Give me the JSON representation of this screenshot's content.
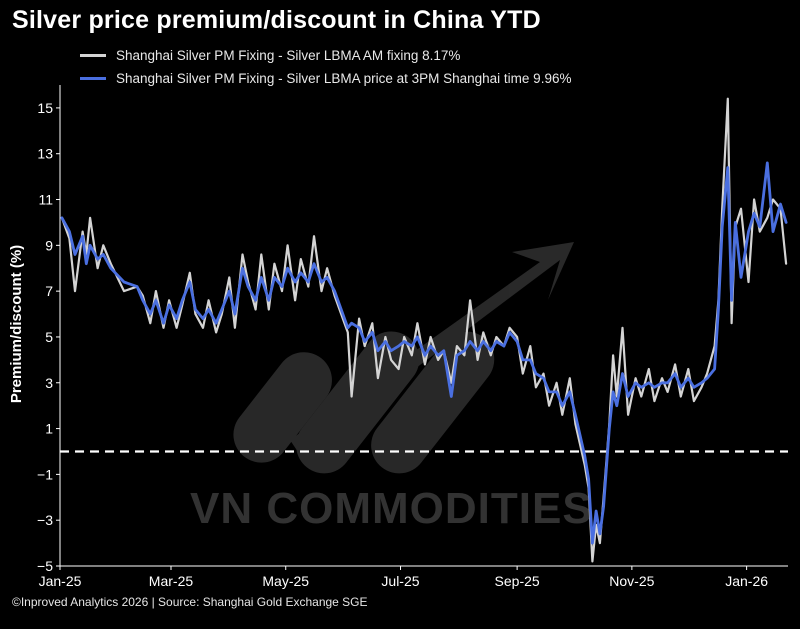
{
  "title": "Silver price premium/discount in China YTD",
  "footer": "©Inproved Analytics 2026 | Source: Shanghai Gold Exchange SGE",
  "watermark": "VN COMMODITIES",
  "colors": {
    "background": "#000000",
    "series_am": "#d4d4d4",
    "series_3pm": "#4a6fe0",
    "zero_line": "#ffffff"
  },
  "chart_data": {
    "type": "line",
    "title": "Silver price premium/discount in China YTD",
    "xlabel": "",
    "ylabel": "Premium/discount (%)",
    "ylim": [
      -5,
      16
    ],
    "yticks": [
      -5,
      -3,
      -1,
      1,
      3,
      5,
      7,
      9,
      11,
      13,
      15
    ],
    "xlim": [
      "2025-01-01",
      "2026-01-23"
    ],
    "xticks": [
      {
        "label": "Jan-25",
        "date": "2025-01-01"
      },
      {
        "label": "Mar-25",
        "date": "2025-03-01"
      },
      {
        "label": "May-25",
        "date": "2025-05-01"
      },
      {
        "label": "Jul-25",
        "date": "2025-07-01"
      },
      {
        "label": "Sep-25",
        "date": "2025-09-01"
      },
      {
        "label": "Nov-25",
        "date": "2025-11-01"
      },
      {
        "label": "Jan-26",
        "date": "2026-01-01"
      }
    ],
    "reference_line": {
      "y": 0,
      "style": "dashed"
    },
    "grid": false,
    "legend_position": "top-left",
    "series": [
      {
        "name": "Shanghai Silver PM Fixing - Silver LBMA AM fixing 8.17%",
        "color": "#d4d4d4",
        "points": [
          [
            "2025-01-02",
            10.2
          ],
          [
            "2025-01-06",
            9.3
          ],
          [
            "2025-01-09",
            7.0
          ],
          [
            "2025-01-13",
            9.6
          ],
          [
            "2025-01-15",
            8.6
          ],
          [
            "2025-01-17",
            10.2
          ],
          [
            "2025-01-21",
            8.0
          ],
          [
            "2025-01-24",
            9.0
          ],
          [
            "2025-01-28",
            8.2
          ],
          [
            "2025-02-04",
            7.0
          ],
          [
            "2025-02-11",
            7.2
          ],
          [
            "2025-02-14",
            6.8
          ],
          [
            "2025-02-18",
            5.6
          ],
          [
            "2025-02-21",
            7.0
          ],
          [
            "2025-02-25",
            5.4
          ],
          [
            "2025-02-28",
            6.6
          ],
          [
            "2025-03-04",
            5.4
          ],
          [
            "2025-03-07",
            6.4
          ],
          [
            "2025-03-11",
            7.8
          ],
          [
            "2025-03-14",
            6.0
          ],
          [
            "2025-03-18",
            5.4
          ],
          [
            "2025-03-21",
            6.6
          ],
          [
            "2025-03-25",
            5.2
          ],
          [
            "2025-03-28",
            6.0
          ],
          [
            "2025-04-01",
            7.6
          ],
          [
            "2025-04-04",
            5.4
          ],
          [
            "2025-04-08",
            8.6
          ],
          [
            "2025-04-11",
            7.4
          ],
          [
            "2025-04-15",
            6.2
          ],
          [
            "2025-04-18",
            8.6
          ],
          [
            "2025-04-22",
            6.2
          ],
          [
            "2025-04-25",
            8.2
          ],
          [
            "2025-04-29",
            7.0
          ],
          [
            "2025-05-02",
            9.0
          ],
          [
            "2025-05-06",
            6.6
          ],
          [
            "2025-05-09",
            8.4
          ],
          [
            "2025-05-13",
            7.2
          ],
          [
            "2025-05-16",
            9.4
          ],
          [
            "2025-05-20",
            7.0
          ],
          [
            "2025-05-23",
            8.0
          ],
          [
            "2025-05-27",
            6.8
          ],
          [
            "2025-06-03",
            5.2
          ],
          [
            "2025-06-05",
            2.4
          ],
          [
            "2025-06-09",
            5.8
          ],
          [
            "2025-06-12",
            4.6
          ],
          [
            "2025-06-16",
            5.6
          ],
          [
            "2025-06-19",
            3.2
          ],
          [
            "2025-06-23",
            5.0
          ],
          [
            "2025-06-26",
            4.0
          ],
          [
            "2025-06-30",
            3.6
          ],
          [
            "2025-07-03",
            5.0
          ],
          [
            "2025-07-07",
            4.2
          ],
          [
            "2025-07-10",
            5.6
          ],
          [
            "2025-07-14",
            3.8
          ],
          [
            "2025-07-17",
            5.0
          ],
          [
            "2025-07-21",
            4.0
          ],
          [
            "2025-07-24",
            4.4
          ],
          [
            "2025-07-28",
            3.0
          ],
          [
            "2025-07-31",
            4.6
          ],
          [
            "2025-08-04",
            4.2
          ],
          [
            "2025-08-07",
            6.6
          ],
          [
            "2025-08-11",
            4.0
          ],
          [
            "2025-08-14",
            5.2
          ],
          [
            "2025-08-18",
            4.2
          ],
          [
            "2025-08-21",
            5.0
          ],
          [
            "2025-08-25",
            4.6
          ],
          [
            "2025-08-28",
            5.4
          ],
          [
            "2025-09-01",
            5.0
          ],
          [
            "2025-09-04",
            3.4
          ],
          [
            "2025-09-08",
            4.6
          ],
          [
            "2025-09-11",
            2.8
          ],
          [
            "2025-09-15",
            3.4
          ],
          [
            "2025-09-18",
            2.0
          ],
          [
            "2025-09-22",
            3.0
          ],
          [
            "2025-09-25",
            1.6
          ],
          [
            "2025-09-29",
            3.2
          ],
          [
            "2025-10-02",
            1.2
          ],
          [
            "2025-10-07",
            -0.6
          ],
          [
            "2025-10-09",
            -1.6
          ],
          [
            "2025-10-11",
            -4.8
          ],
          [
            "2025-10-13",
            -3.2
          ],
          [
            "2025-10-15",
            -4.0
          ],
          [
            "2025-10-17",
            -2.0
          ],
          [
            "2025-10-20",
            1.2
          ],
          [
            "2025-10-22",
            4.2
          ],
          [
            "2025-10-24",
            2.4
          ],
          [
            "2025-10-27",
            5.4
          ],
          [
            "2025-10-30",
            1.6
          ],
          [
            "2025-11-03",
            3.2
          ],
          [
            "2025-11-06",
            2.4
          ],
          [
            "2025-11-10",
            3.6
          ],
          [
            "2025-11-13",
            2.2
          ],
          [
            "2025-11-17",
            3.2
          ],
          [
            "2025-11-20",
            2.6
          ],
          [
            "2025-11-24",
            3.8
          ],
          [
            "2025-11-27",
            2.4
          ],
          [
            "2025-12-01",
            3.6
          ],
          [
            "2025-12-04",
            2.2
          ],
          [
            "2025-12-08",
            2.8
          ],
          [
            "2025-12-11",
            3.4
          ],
          [
            "2025-12-15",
            4.6
          ],
          [
            "2025-12-17",
            6.6
          ],
          [
            "2025-12-19",
            10.6
          ],
          [
            "2025-12-22",
            15.4
          ],
          [
            "2025-12-24",
            5.6
          ],
          [
            "2025-12-26",
            9.8
          ],
          [
            "2025-12-29",
            10.6
          ],
          [
            "2026-01-02",
            7.4
          ],
          [
            "2026-01-05",
            11.0
          ],
          [
            "2026-01-08",
            9.6
          ],
          [
            "2026-01-12",
            10.2
          ],
          [
            "2026-01-15",
            11.0
          ],
          [
            "2026-01-19",
            10.6
          ],
          [
            "2026-01-22",
            8.2
          ]
        ]
      },
      {
        "name": "Shanghai Silver PM Fixing - Silver LBMA price at 3PM Shanghai time 9.96%",
        "color": "#4a6fe0",
        "points": [
          [
            "2025-01-02",
            10.2
          ],
          [
            "2025-01-06",
            9.6
          ],
          [
            "2025-01-09",
            8.6
          ],
          [
            "2025-01-13",
            9.4
          ],
          [
            "2025-01-15",
            8.2
          ],
          [
            "2025-01-17",
            9.0
          ],
          [
            "2025-01-21",
            8.4
          ],
          [
            "2025-01-24",
            8.6
          ],
          [
            "2025-01-28",
            8.0
          ],
          [
            "2025-02-04",
            7.4
          ],
          [
            "2025-02-11",
            7.2
          ],
          [
            "2025-02-14",
            6.6
          ],
          [
            "2025-02-18",
            6.0
          ],
          [
            "2025-02-21",
            6.6
          ],
          [
            "2025-02-25",
            5.6
          ],
          [
            "2025-02-28",
            6.4
          ],
          [
            "2025-03-04",
            5.8
          ],
          [
            "2025-03-07",
            6.6
          ],
          [
            "2025-03-11",
            7.4
          ],
          [
            "2025-03-14",
            6.2
          ],
          [
            "2025-03-18",
            5.8
          ],
          [
            "2025-03-21",
            6.2
          ],
          [
            "2025-03-25",
            5.6
          ],
          [
            "2025-03-28",
            6.2
          ],
          [
            "2025-04-01",
            7.0
          ],
          [
            "2025-04-04",
            6.0
          ],
          [
            "2025-04-08",
            8.0
          ],
          [
            "2025-04-11",
            7.2
          ],
          [
            "2025-04-15",
            6.6
          ],
          [
            "2025-04-18",
            7.6
          ],
          [
            "2025-04-22",
            6.6
          ],
          [
            "2025-04-25",
            7.6
          ],
          [
            "2025-04-29",
            7.2
          ],
          [
            "2025-05-02",
            8.0
          ],
          [
            "2025-05-06",
            7.4
          ],
          [
            "2025-05-09",
            7.8
          ],
          [
            "2025-05-13",
            7.4
          ],
          [
            "2025-05-16",
            8.2
          ],
          [
            "2025-05-20",
            7.4
          ],
          [
            "2025-05-23",
            7.6
          ],
          [
            "2025-05-27",
            7.0
          ],
          [
            "2025-06-03",
            5.4
          ],
          [
            "2025-06-05",
            5.6
          ],
          [
            "2025-06-09",
            5.4
          ],
          [
            "2025-06-12",
            4.8
          ],
          [
            "2025-06-16",
            5.2
          ],
          [
            "2025-06-19",
            4.4
          ],
          [
            "2025-06-23",
            4.8
          ],
          [
            "2025-06-26",
            4.4
          ],
          [
            "2025-06-30",
            4.6
          ],
          [
            "2025-07-03",
            4.8
          ],
          [
            "2025-07-07",
            4.6
          ],
          [
            "2025-07-10",
            5.0
          ],
          [
            "2025-07-14",
            4.2
          ],
          [
            "2025-07-17",
            4.6
          ],
          [
            "2025-07-21",
            4.2
          ],
          [
            "2025-07-24",
            4.4
          ],
          [
            "2025-07-28",
            2.4
          ],
          [
            "2025-07-31",
            4.2
          ],
          [
            "2025-08-04",
            4.4
          ],
          [
            "2025-08-07",
            4.8
          ],
          [
            "2025-08-11",
            4.4
          ],
          [
            "2025-08-14",
            4.8
          ],
          [
            "2025-08-18",
            4.4
          ],
          [
            "2025-08-21",
            4.8
          ],
          [
            "2025-08-25",
            4.6
          ],
          [
            "2025-08-28",
            5.2
          ],
          [
            "2025-09-01",
            4.8
          ],
          [
            "2025-09-04",
            4.0
          ],
          [
            "2025-09-08",
            4.0
          ],
          [
            "2025-09-11",
            3.4
          ],
          [
            "2025-09-15",
            3.2
          ],
          [
            "2025-09-18",
            2.6
          ],
          [
            "2025-09-22",
            2.6
          ],
          [
            "2025-09-25",
            2.0
          ],
          [
            "2025-09-29",
            2.6
          ],
          [
            "2025-10-02",
            1.6
          ],
          [
            "2025-10-07",
            -0.2
          ],
          [
            "2025-10-09",
            -1.2
          ],
          [
            "2025-10-11",
            -4.0
          ],
          [
            "2025-10-13",
            -2.6
          ],
          [
            "2025-10-15",
            -3.6
          ],
          [
            "2025-10-17",
            -2.4
          ],
          [
            "2025-10-20",
            1.0
          ],
          [
            "2025-10-22",
            2.6
          ],
          [
            "2025-10-24",
            2.0
          ],
          [
            "2025-10-27",
            3.4
          ],
          [
            "2025-10-30",
            2.4
          ],
          [
            "2025-11-03",
            3.0
          ],
          [
            "2025-11-06",
            2.8
          ],
          [
            "2025-11-10",
            3.0
          ],
          [
            "2025-11-13",
            2.8
          ],
          [
            "2025-11-17",
            3.0
          ],
          [
            "2025-11-20",
            3.0
          ],
          [
            "2025-11-24",
            3.4
          ],
          [
            "2025-11-27",
            2.8
          ],
          [
            "2025-12-01",
            3.2
          ],
          [
            "2025-12-04",
            2.8
          ],
          [
            "2025-12-08",
            3.0
          ],
          [
            "2025-12-11",
            3.2
          ],
          [
            "2025-12-15",
            3.6
          ],
          [
            "2025-12-17",
            6.2
          ],
          [
            "2025-12-19",
            9.8
          ],
          [
            "2025-12-22",
            12.4
          ],
          [
            "2025-12-24",
            6.6
          ],
          [
            "2025-12-26",
            10.0
          ],
          [
            "2025-12-29",
            7.6
          ],
          [
            "2026-01-02",
            9.6
          ],
          [
            "2026-01-05",
            10.4
          ],
          [
            "2026-01-08",
            9.8
          ],
          [
            "2026-01-12",
            12.6
          ],
          [
            "2026-01-15",
            9.6
          ],
          [
            "2026-01-19",
            10.8
          ],
          [
            "2026-01-22",
            10.0
          ]
        ]
      }
    ]
  }
}
